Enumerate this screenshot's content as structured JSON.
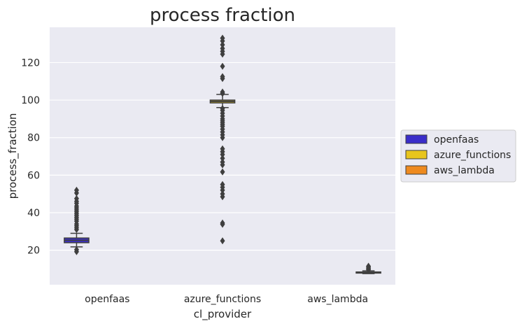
{
  "chart_data": {
    "type": "box",
    "title": "process fraction",
    "xlabel": "cl_provider",
    "ylabel": "process_fraction",
    "ylim": [
      1.6,
      138.8
    ],
    "yticks": [
      20,
      40,
      60,
      80,
      100,
      120
    ],
    "grid": true,
    "legend_position": "right",
    "categories": [
      "openfaas",
      "azure_functions",
      "aws_lambda"
    ],
    "series": [
      {
        "name": "openfaas",
        "color": "#3a2dc9",
        "whislo": 21.8,
        "q1": 24.0,
        "median": 25.3,
        "q3": 26.5,
        "whishi": 29.0,
        "outliers": [
          19.2,
          20.3,
          31.0,
          32.0,
          33.0,
          34.0,
          35.5,
          36.5,
          37.5,
          38.5,
          39.5,
          40.5,
          41.5,
          42.5,
          43.5,
          45.0,
          46.0,
          47.5,
          50.5,
          52.0
        ]
      },
      {
        "name": "azure_functions",
        "color": "#e8c51c",
        "whislo": 96.0,
        "q1": 98.5,
        "median": 99.3,
        "q3": 100.0,
        "whishi": 103.0,
        "outliers": [
          25.0,
          33.8,
          34.5,
          48.5,
          50.0,
          52.0,
          53.5,
          55.0,
          61.7,
          65.5,
          67.0,
          69.0,
          71.0,
          72.5,
          74.0,
          80.0,
          81.5,
          83.0,
          84.5,
          86.0,
          87.0,
          88.0,
          89.0,
          90.0,
          91.5,
          93.0,
          94.5,
          95.5,
          103.5,
          104.3,
          111.5,
          112.5,
          118.0,
          124.5,
          126.0,
          127.5,
          129.5,
          131.5,
          133.0
        ]
      },
      {
        "name": "aws_lambda",
        "color": "#ee8a1f",
        "whislo": 7.5,
        "q1": 7.8,
        "median": 8.0,
        "q3": 8.4,
        "whishi": 9.0,
        "outliers": [
          9.5,
          10.0,
          10.5,
          11.0,
          11.5
        ]
      }
    ]
  }
}
